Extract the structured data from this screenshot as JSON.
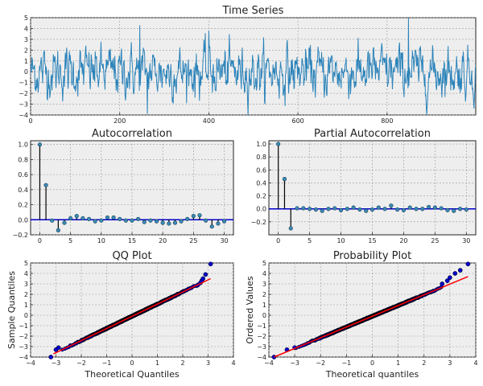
{
  "colors": {
    "series": "#2b83ba",
    "stem": "#000000",
    "marker": "#3a8bb5",
    "baseline": "#0000cc",
    "points": "#0000cc",
    "fitline": "#ff0000",
    "panel_bg": "#eeeeee"
  },
  "chart_data": [
    {
      "id": "ts",
      "type": "line",
      "title": "Time Series",
      "xlabel": "",
      "ylabel": "",
      "xlim": [
        0,
        999
      ],
      "ylim": [
        -4,
        5
      ],
      "xticks": [
        0,
        200,
        400,
        600,
        800
      ],
      "yticks": [
        -4,
        -3,
        -2,
        -1,
        0,
        1,
        2,
        3,
        4,
        5
      ],
      "grid": true,
      "n": 1000,
      "notable_values": [
        {
          "x": 245,
          "y": 4.3
        },
        {
          "x": 400,
          "y": 3.8
        },
        {
          "x": 262,
          "y": -3.9
        },
        {
          "x": 848,
          "y": 5.0
        }
      ]
    },
    {
      "id": "acf",
      "type": "stem",
      "title": "Autocorrelation",
      "xlabel": "",
      "ylabel": "",
      "xlim": [
        -1.5,
        31.5
      ],
      "ylim": [
        -0.2,
        1.05
      ],
      "xticks": [
        0,
        5,
        10,
        15,
        20,
        25,
        30
      ],
      "yticks": [
        -0.2,
        0.0,
        0.2,
        0.4,
        0.6,
        0.8,
        1.0
      ],
      "ytick_labels": [
        "−0.2",
        "0.0",
        "0.2",
        "0.4",
        "0.6",
        "0.8",
        "1.0"
      ],
      "grid": true,
      "lags": [
        0,
        1,
        2,
        3,
        4,
        5,
        6,
        7,
        8,
        9,
        10,
        11,
        12,
        13,
        14,
        15,
        16,
        17,
        18,
        19,
        20,
        21,
        22,
        23,
        24,
        25,
        26,
        27,
        28,
        29,
        30
      ],
      "values": [
        1.0,
        0.46,
        -0.01,
        -0.14,
        -0.04,
        0.02,
        0.05,
        0.02,
        0.01,
        -0.02,
        -0.01,
        0.03,
        0.03,
        0.01,
        -0.01,
        -0.01,
        0.01,
        -0.03,
        -0.01,
        -0.02,
        -0.04,
        -0.05,
        -0.04,
        -0.02,
        0.01,
        0.05,
        0.06,
        -0.01,
        -0.09,
        -0.05,
        -0.02
      ]
    },
    {
      "id": "pacf",
      "type": "stem",
      "title": "Partial Autocorrelation",
      "xlabel": "",
      "ylabel": "",
      "xlim": [
        -1.5,
        31.5
      ],
      "ylim": [
        -0.4,
        1.05
      ],
      "xticks": [
        0,
        5,
        10,
        15,
        20,
        25,
        30
      ],
      "yticks": [
        -0.2,
        0.0,
        0.2,
        0.4,
        0.6,
        0.8,
        1.0
      ],
      "ytick_labels": [
        "−0.2",
        "0.0",
        "0.2",
        "0.4",
        "0.6",
        "0.8",
        "1.0"
      ],
      "grid": true,
      "lags": [
        0,
        1,
        2,
        3,
        4,
        5,
        6,
        7,
        8,
        9,
        10,
        11,
        12,
        13,
        14,
        15,
        16,
        17,
        18,
        19,
        20,
        21,
        22,
        23,
        24,
        25,
        26,
        27,
        28,
        29,
        30
      ],
      "values": [
        1.0,
        0.46,
        -0.3,
        0.01,
        0.01,
        0.0,
        -0.01,
        -0.03,
        0.0,
        0.01,
        -0.02,
        0.0,
        0.02,
        -0.01,
        -0.03,
        -0.01,
        0.02,
        0.0,
        0.05,
        -0.01,
        -0.02,
        0.02,
        0.0,
        0.0,
        0.03,
        0.02,
        0.01,
        -0.02,
        -0.03,
        0.0,
        -0.01
      ]
    },
    {
      "id": "qq",
      "type": "scatter",
      "title": "QQ Plot",
      "xlabel": "Theoretical Quantiles",
      "ylabel": "Sample Quantiles",
      "xlim": [
        -4,
        4
      ],
      "ylim": [
        -4,
        5
      ],
      "xticks": [
        -4,
        -3,
        -2,
        -1,
        0,
        1,
        2,
        3,
        4
      ],
      "yticks": [
        -4,
        -3,
        -2,
        -1,
        0,
        1,
        2,
        3,
        4,
        5
      ],
      "grid": true,
      "n_points": 1000,
      "fit_line": [
        [
          -3.1,
          -3.7
        ],
        [
          3.1,
          3.5
        ]
      ],
      "upper_tail": [
        [
          2.6,
          2.9
        ],
        [
          2.7,
          3.1
        ],
        [
          2.75,
          3.3
        ],
        [
          2.8,
          3.5
        ],
        [
          2.9,
          3.9
        ],
        [
          3.1,
          4.9
        ]
      ],
      "lower_tail": [
        [
          -3.2,
          -4.0
        ],
        [
          -3.0,
          -3.3
        ],
        [
          -2.9,
          -3.1
        ]
      ]
    },
    {
      "id": "prob",
      "type": "scatter",
      "title": "Probability Plot",
      "xlabel": "Theoretical quantiles",
      "ylabel": "Ordered Values",
      "xlim": [
        -4,
        4
      ],
      "ylim": [
        -4,
        5
      ],
      "xticks": [
        -4,
        -3,
        -2,
        -1,
        0,
        1,
        2,
        3,
        4
      ],
      "yticks": [
        -4,
        -3,
        -2,
        -1,
        0,
        1,
        2,
        3,
        4,
        5
      ],
      "grid": true,
      "n_points": 1000,
      "fit_line": [
        [
          -3.8,
          -4.0
        ],
        [
          3.7,
          3.7
        ]
      ],
      "upper_tail": [
        [
          2.7,
          3.0
        ],
        [
          2.9,
          3.3
        ],
        [
          3.0,
          3.6
        ],
        [
          3.2,
          4.0
        ],
        [
          3.4,
          4.3
        ],
        [
          3.7,
          4.9
        ]
      ],
      "lower_tail": [
        [
          -3.8,
          -4.0
        ],
        [
          -3.3,
          -3.3
        ],
        [
          -3.0,
          -3.1
        ]
      ]
    }
  ]
}
